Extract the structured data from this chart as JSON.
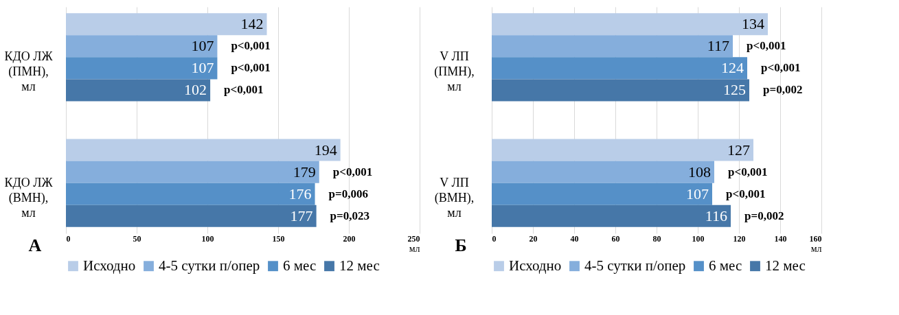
{
  "chart_data": [
    {
      "type": "bar",
      "orientation": "horizontal",
      "title": "А",
      "xlabel": "мл",
      "categories": [
        "КДО ЛЖ\n(ПМН),\nмл",
        "КДО ЛЖ\n(ВМН),\nмл"
      ],
      "series": [
        {
          "name": "Исходно",
          "color": "#b9cde8",
          "values": [
            142,
            194
          ]
        },
        {
          "name": "4-5 сутки п/опер",
          "color": "#85aedc",
          "values": [
            107,
            179
          ]
        },
        {
          "name": "6 мес",
          "color": "#5590c8",
          "values": [
            107,
            176
          ]
        },
        {
          "name": "12 мес",
          "color": "#4677a8",
          "values": [
            102,
            177
          ]
        }
      ],
      "annotations": [
        "p<0,001",
        "p<0,001",
        "p<0,001",
        "p<0,001",
        "p=0,006",
        "p=0,023"
      ],
      "xlim": [
        0,
        250
      ],
      "xticks": [
        0,
        50,
        100,
        150,
        200,
        250
      ],
      "grid": "x",
      "legend": "bottom",
      "data_labels": true
    },
    {
      "type": "bar",
      "orientation": "horizontal",
      "title": "Б",
      "xlabel": "мл",
      "categories": [
        "V ЛП\n(ПМН),\nмл",
        "V ЛП\n(ВМН),\nмл"
      ],
      "series": [
        {
          "name": "Исходно",
          "color": "#b9cde8",
          "values": [
            134,
            127
          ]
        },
        {
          "name": "4-5 сутки п/опер",
          "color": "#85aedc",
          "values": [
            117,
            108
          ]
        },
        {
          "name": "6 мес",
          "color": "#5590c8",
          "values": [
            124,
            107
          ]
        },
        {
          "name": "12 мес",
          "color": "#4677a8",
          "values": [
            125,
            116
          ]
        }
      ],
      "annotations": [
        "p<0,001",
        "p<0,001",
        "p=0,002",
        "p<0,001",
        "p<0,001",
        "p=0,002"
      ],
      "xlim": [
        0,
        160
      ],
      "xticks": [
        0,
        20,
        40,
        60,
        80,
        100,
        120,
        140,
        160
      ],
      "grid": "x",
      "legend": "bottom",
      "data_labels": true
    }
  ]
}
